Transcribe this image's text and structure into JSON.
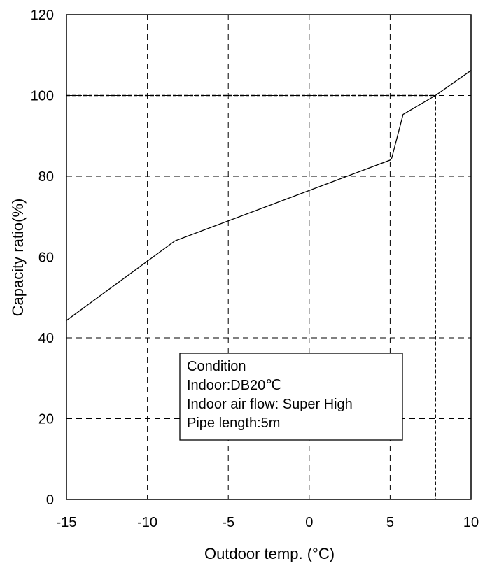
{
  "chart_data": {
    "type": "line",
    "xlabel": "Outdoor temp. (°C)",
    "ylabel": "Capacity ratio(%)",
    "xlim": [
      -15,
      10
    ],
    "ylim": [
      0,
      120
    ],
    "xticks": [
      -15,
      -10,
      -5,
      0,
      5,
      10
    ],
    "yticks": [
      0,
      20,
      40,
      60,
      80,
      100,
      120
    ],
    "xtick_labels": [
      "-15",
      "-10",
      "-5",
      "0",
      "5",
      "10"
    ],
    "ytick_labels": [
      "0",
      "20",
      "40",
      "60",
      "80",
      "100",
      "120"
    ],
    "grid": true,
    "series": [
      {
        "x": [
          -15,
          -8.3,
          5.0,
          5.1,
          5.8,
          7.8,
          10
        ],
        "y": [
          44.3,
          64,
          84,
          84.5,
          95.3,
          100,
          106.2
        ]
      }
    ],
    "reference_point": {
      "x": 7.8,
      "y": 100
    },
    "annotation": {
      "lines": [
        "Condition",
        "Indoor:DB20℃",
        "Indoor air flow: Super High",
        "Pipe length:5m"
      ]
    }
  }
}
